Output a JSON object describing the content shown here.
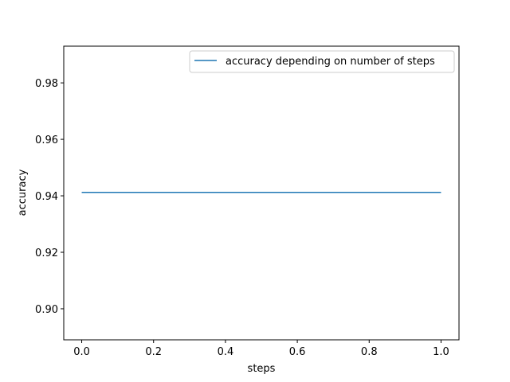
{
  "chart_data": {
    "type": "line",
    "title": "",
    "xlabel": "steps",
    "ylabel": "accuracy",
    "xlim": [
      -0.05,
      1.05
    ],
    "ylim": [
      0.889,
      0.993
    ],
    "xticks": [
      0.0,
      0.2,
      0.4,
      0.6,
      0.8,
      1.0
    ],
    "xtick_labels": [
      "0.0",
      "0.2",
      "0.4",
      "0.6",
      "0.8",
      "1.0"
    ],
    "yticks": [
      0.9,
      0.92,
      0.94,
      0.96,
      0.98
    ],
    "ytick_labels": [
      "0.90",
      "0.92",
      "0.94",
      "0.96",
      "0.98"
    ],
    "grid": false,
    "legend_position": "upper right",
    "series": [
      {
        "name": "accuracy depending on number of steps",
        "color": "#1f77b4",
        "x": [
          0.0,
          1.0
        ],
        "y": [
          0.9412,
          0.9412
        ]
      }
    ]
  }
}
